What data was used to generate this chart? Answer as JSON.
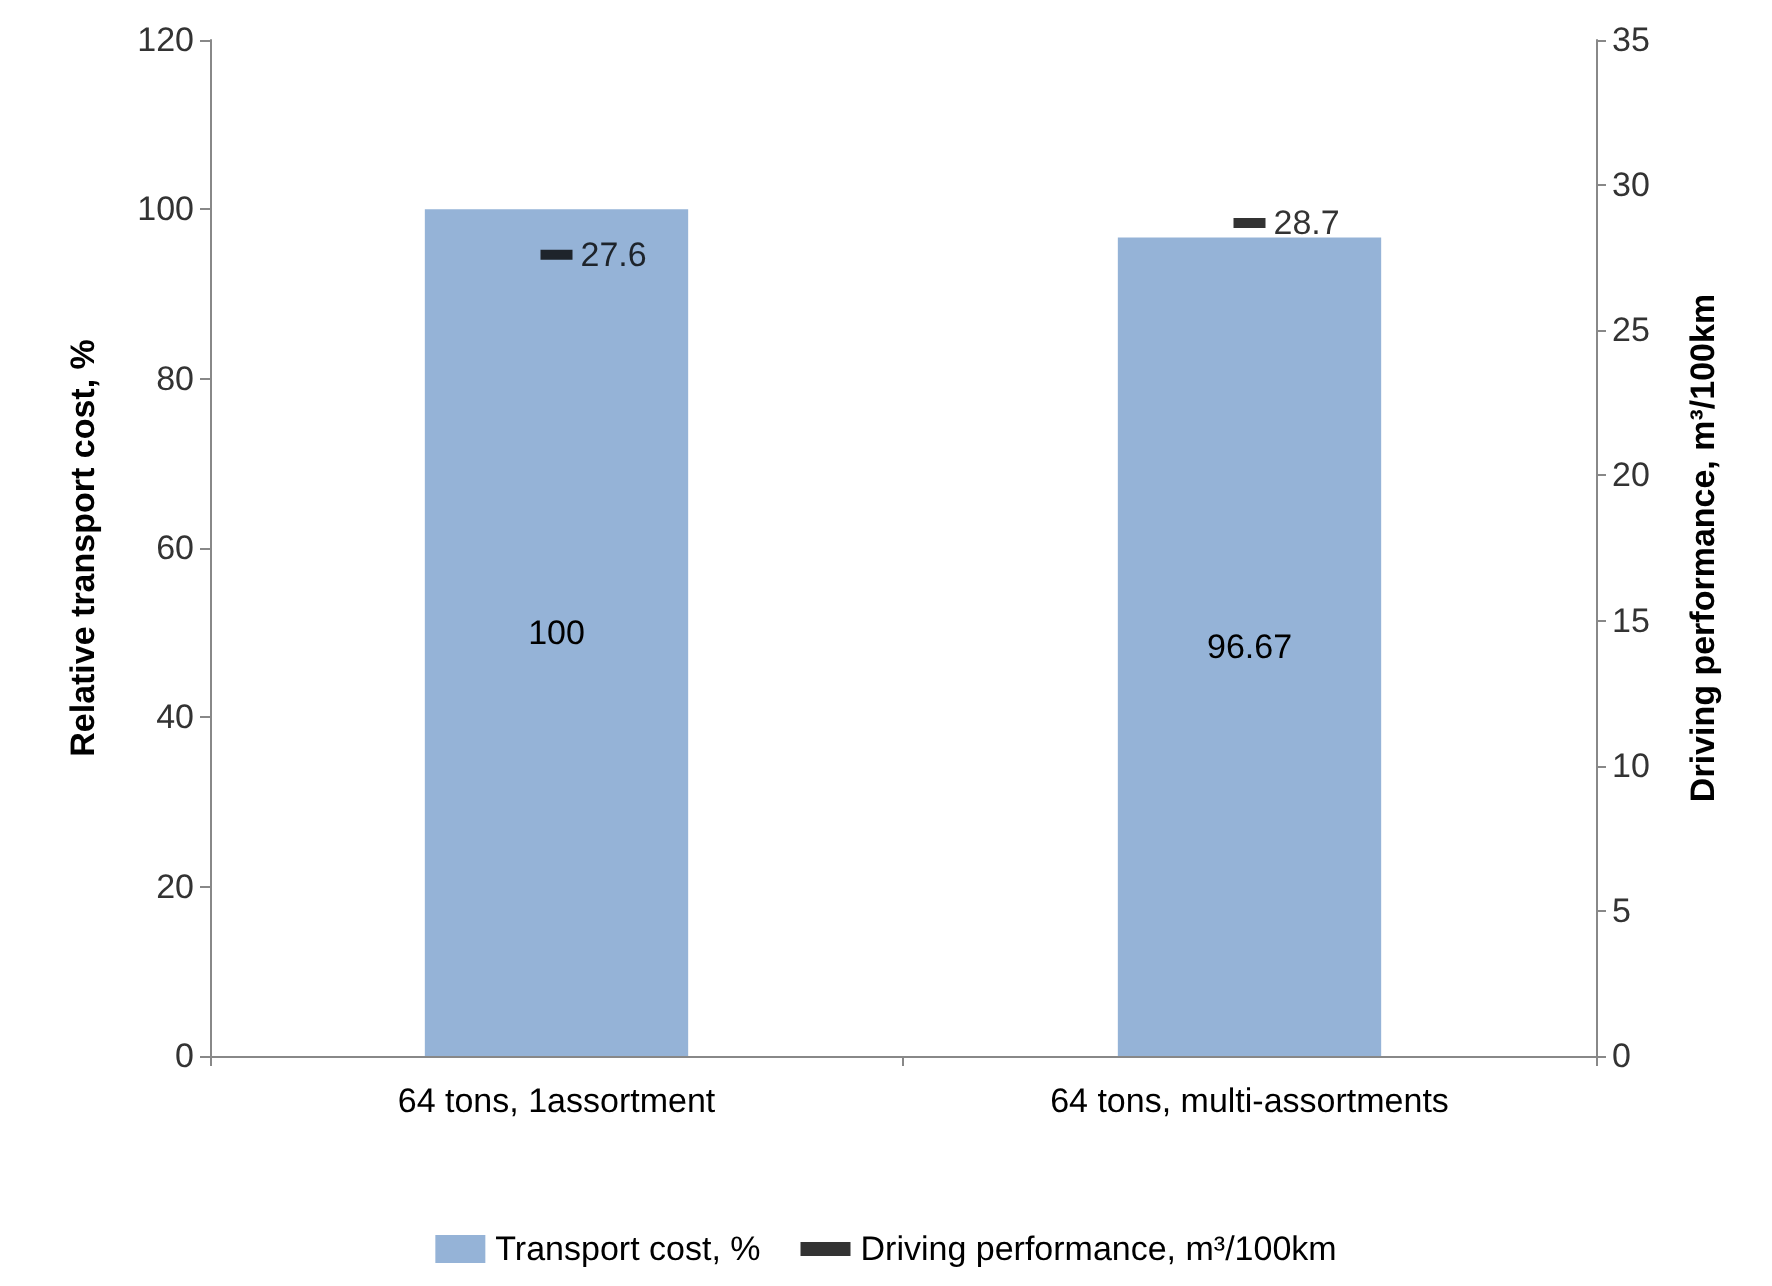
{
  "chart_data": {
    "type": "bar",
    "ylabel": "Relative transport cost, %",
    "y2label": "Driving performance, m³/100km",
    "categories": [
      "64 tons, 1assortment",
      "64 tons, multi-assortments"
    ],
    "series": [
      {
        "name": "Transport cost, %",
        "color": "#95b3d7",
        "values": [
          100,
          96.67
        ]
      },
      {
        "name": "Driving performance, m³/100km",
        "type": "scatter",
        "axis": "y2",
        "color": "#000000",
        "values": [
          27.6,
          28.7
        ]
      }
    ],
    "ylim": [
      0,
      120
    ],
    "yticks": [
      0,
      20,
      40,
      60,
      80,
      100,
      120
    ],
    "y2lim": [
      0,
      35
    ],
    "y2ticks": [
      0,
      5,
      10,
      15,
      20,
      25,
      30,
      35
    ],
    "data_labels": true,
    "grid": false,
    "legend": "bottom"
  }
}
